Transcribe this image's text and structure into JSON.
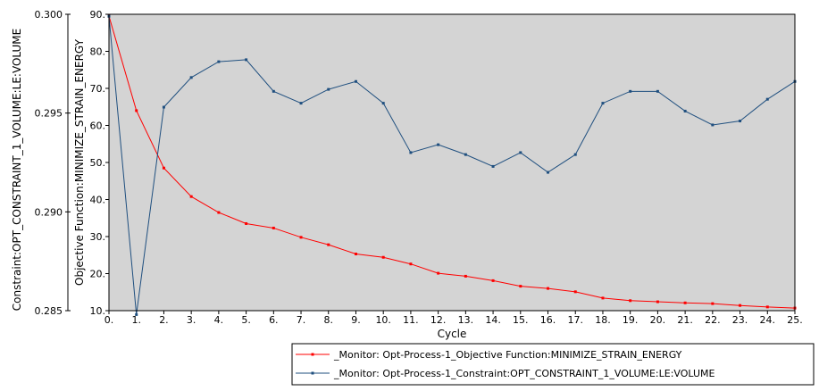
{
  "chart_data": {
    "type": "line",
    "xlabel": "Cycle",
    "x": [
      0,
      1,
      2,
      3,
      4,
      5,
      6,
      7,
      8,
      9,
      10,
      11,
      12,
      13,
      14,
      15,
      16,
      17,
      18,
      19,
      20,
      21,
      22,
      23,
      24,
      25
    ],
    "x_tick_labels": [
      "0.",
      "1.",
      "2.",
      "3.",
      "4.",
      "5.",
      "6.",
      "7.",
      "8.",
      "9.",
      "10.",
      "11.",
      "12.",
      "13.",
      "14.",
      "15.",
      "16.",
      "17.",
      "18.",
      "19.",
      "20.",
      "21.",
      "22.",
      "23.",
      "24.",
      "25."
    ],
    "xlim": [
      0,
      25
    ],
    "axes": {
      "constraint": {
        "label": "Constraint:OPT_CONSTRAINT_1_VOLUME:LE:VOLUME",
        "ylim": [
          0.285,
          0.3
        ],
        "ticks": [
          0.285,
          0.29,
          0.295,
          0.3
        ],
        "tick_labels": [
          "0.285",
          "0.290",
          "0.295",
          "0.300"
        ]
      },
      "objective": {
        "label": "Objective Function:MINIMIZE_STRAIN_ENERGY",
        "ylim": [
          10,
          90
        ],
        "ticks": [
          10,
          20,
          30,
          40,
          50,
          60,
          70,
          80,
          90
        ],
        "tick_labels": [
          "10.",
          "20.",
          "30.",
          "40.",
          "50.",
          "60.",
          "70.",
          "80.",
          "90."
        ]
      }
    },
    "series": [
      {
        "name": "_Monitor: Opt-Process-1_Objective Function:MINIMIZE_STRAIN_ENERGY",
        "color": "#ff0000",
        "axis": "objective",
        "values": [
          89.5,
          64,
          48.5,
          40.8,
          36.5,
          33.5,
          32.3,
          29.8,
          27.8,
          25.3,
          24.4,
          22.6,
          20.1,
          19.3,
          18.1,
          16.6,
          16.0,
          15.1,
          13.4,
          12.7,
          12.4,
          12.1,
          11.9,
          11.4,
          11.0,
          10.7
        ]
      },
      {
        "name": "_Monitor: Opt-Process-1_Constraint:OPT_CONSTRAINT_1_VOLUME:LE:VOLUME",
        "color": "#1f4f7f",
        "axis": "constraint",
        "values": [
          0.2999,
          0.2848,
          0.2953,
          0.2968,
          0.2976,
          0.2977,
          0.2961,
          0.2955,
          0.2962,
          0.2966,
          0.2955,
          0.293,
          0.2934,
          0.2929,
          0.2923,
          0.293,
          0.292,
          0.2929,
          0.2955,
          0.2961,
          0.2961,
          0.2951,
          0.2944,
          0.2946,
          0.2957,
          0.2966
        ]
      }
    ],
    "grid": false,
    "legend_position": "bottom-right",
    "plot_background": "#d4d4d4"
  }
}
